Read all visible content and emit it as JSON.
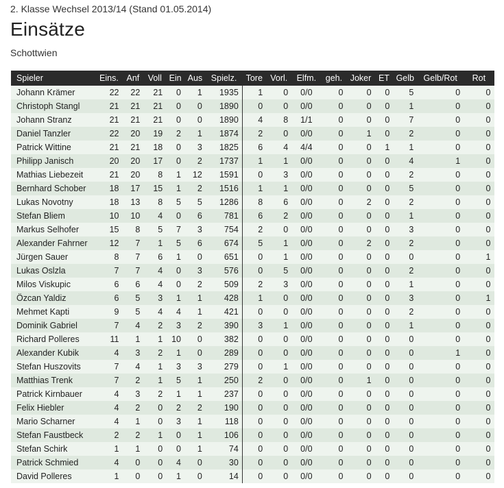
{
  "header": {
    "season": "2. Klasse Wechsel 2013/14 (Stand 01.05.2014)",
    "title": "Einsätze",
    "team": "Schottwien"
  },
  "table": {
    "columns": [
      "Spieler",
      "Eins.",
      "Anf",
      "Voll",
      "Ein",
      "Aus",
      "Spielz.",
      "Tore",
      "Vorl.",
      "Elfm.",
      "geh.",
      "Joker",
      "ET",
      "Gelb",
      "Gelb/Rot",
      "Rot"
    ],
    "rows": [
      [
        "Johann Krämer",
        "22",
        "22",
        "21",
        "0",
        "1",
        "1935",
        "1",
        "0",
        "0/0",
        "0",
        "0",
        "0",
        "5",
        "0",
        "0"
      ],
      [
        "Christoph Stangl",
        "21",
        "21",
        "21",
        "0",
        "0",
        "1890",
        "0",
        "0",
        "0/0",
        "0",
        "0",
        "0",
        "1",
        "0",
        "0"
      ],
      [
        "Johann Stranz",
        "21",
        "21",
        "21",
        "0",
        "0",
        "1890",
        "4",
        "8",
        "1/1",
        "0",
        "0",
        "0",
        "7",
        "0",
        "0"
      ],
      [
        "Daniel Tanzler",
        "22",
        "20",
        "19",
        "2",
        "1",
        "1874",
        "2",
        "0",
        "0/0",
        "0",
        "1",
        "0",
        "2",
        "0",
        "0"
      ],
      [
        "Patrick Wittine",
        "21",
        "21",
        "18",
        "0",
        "3",
        "1825",
        "6",
        "4",
        "4/4",
        "0",
        "0",
        "1",
        "1",
        "0",
        "0"
      ],
      [
        "Philipp Janisch",
        "20",
        "20",
        "17",
        "0",
        "2",
        "1737",
        "1",
        "1",
        "0/0",
        "0",
        "0",
        "0",
        "4",
        "1",
        "0"
      ],
      [
        "Mathias Liebezeit",
        "21",
        "20",
        "8",
        "1",
        "12",
        "1591",
        "0",
        "3",
        "0/0",
        "0",
        "0",
        "0",
        "2",
        "0",
        "0"
      ],
      [
        "Bernhard Schober",
        "18",
        "17",
        "15",
        "1",
        "2",
        "1516",
        "1",
        "1",
        "0/0",
        "0",
        "0",
        "0",
        "5",
        "0",
        "0"
      ],
      [
        "Lukas Novotny",
        "18",
        "13",
        "8",
        "5",
        "5",
        "1286",
        "8",
        "6",
        "0/0",
        "0",
        "2",
        "0",
        "2",
        "0",
        "0"
      ],
      [
        "Stefan Bliem",
        "10",
        "10",
        "4",
        "0",
        "6",
        "781",
        "6",
        "2",
        "0/0",
        "0",
        "0",
        "0",
        "1",
        "0",
        "0"
      ],
      [
        "Markus Selhofer",
        "15",
        "8",
        "5",
        "7",
        "3",
        "754",
        "2",
        "0",
        "0/0",
        "0",
        "0",
        "0",
        "3",
        "0",
        "0"
      ],
      [
        "Alexander Fahrner",
        "12",
        "7",
        "1",
        "5",
        "6",
        "674",
        "5",
        "1",
        "0/0",
        "0",
        "2",
        "0",
        "2",
        "0",
        "0"
      ],
      [
        "Jürgen Sauer",
        "8",
        "7",
        "6",
        "1",
        "0",
        "651",
        "0",
        "1",
        "0/0",
        "0",
        "0",
        "0",
        "0",
        "0",
        "1"
      ],
      [
        "Lukas Oslzla",
        "7",
        "7",
        "4",
        "0",
        "3",
        "576",
        "0",
        "5",
        "0/0",
        "0",
        "0",
        "0",
        "2",
        "0",
        "0"
      ],
      [
        "Milos Viskupic",
        "6",
        "6",
        "4",
        "0",
        "2",
        "509",
        "2",
        "3",
        "0/0",
        "0",
        "0",
        "0",
        "1",
        "0",
        "0"
      ],
      [
        "Özcan Yaldiz",
        "6",
        "5",
        "3",
        "1",
        "1",
        "428",
        "1",
        "0",
        "0/0",
        "0",
        "0",
        "0",
        "3",
        "0",
        "1"
      ],
      [
        "Mehmet Kapti",
        "9",
        "5",
        "4",
        "4",
        "1",
        "421",
        "0",
        "0",
        "0/0",
        "0",
        "0",
        "0",
        "2",
        "0",
        "0"
      ],
      [
        "Dominik Gabriel",
        "7",
        "4",
        "2",
        "3",
        "2",
        "390",
        "3",
        "1",
        "0/0",
        "0",
        "0",
        "0",
        "1",
        "0",
        "0"
      ],
      [
        "Richard Polleres",
        "11",
        "1",
        "1",
        "10",
        "0",
        "382",
        "0",
        "0",
        "0/0",
        "0",
        "0",
        "0",
        "0",
        "0",
        "0"
      ],
      [
        "Alexander Kubik",
        "4",
        "3",
        "2",
        "1",
        "0",
        "289",
        "0",
        "0",
        "0/0",
        "0",
        "0",
        "0",
        "0",
        "1",
        "0"
      ],
      [
        "Stefan Huszovits",
        "7",
        "4",
        "1",
        "3",
        "3",
        "279",
        "0",
        "1",
        "0/0",
        "0",
        "0",
        "0",
        "0",
        "0",
        "0"
      ],
      [
        "Matthias Trenk",
        "7",
        "2",
        "1",
        "5",
        "1",
        "250",
        "2",
        "0",
        "0/0",
        "0",
        "1",
        "0",
        "0",
        "0",
        "0"
      ],
      [
        "Patrick Kirnbauer",
        "4",
        "3",
        "2",
        "1",
        "1",
        "237",
        "0",
        "0",
        "0/0",
        "0",
        "0",
        "0",
        "0",
        "0",
        "0"
      ],
      [
        "Felix Hiebler",
        "4",
        "2",
        "0",
        "2",
        "2",
        "190",
        "0",
        "0",
        "0/0",
        "0",
        "0",
        "0",
        "0",
        "0",
        "0"
      ],
      [
        "Mario Scharner",
        "4",
        "1",
        "0",
        "3",
        "1",
        "118",
        "0",
        "0",
        "0/0",
        "0",
        "0",
        "0",
        "0",
        "0",
        "0"
      ],
      [
        "Stefan Faustbeck",
        "2",
        "2",
        "1",
        "0",
        "1",
        "106",
        "0",
        "0",
        "0/0",
        "0",
        "0",
        "0",
        "0",
        "0",
        "0"
      ],
      [
        "Stefan Schirk",
        "1",
        "1",
        "0",
        "0",
        "1",
        "74",
        "0",
        "0",
        "0/0",
        "0",
        "0",
        "0",
        "0",
        "0",
        "0"
      ],
      [
        "Patrick Schmied",
        "4",
        "0",
        "0",
        "4",
        "0",
        "30",
        "0",
        "0",
        "0/0",
        "0",
        "0",
        "0",
        "0",
        "0",
        "0"
      ],
      [
        "David Polleres",
        "1",
        "0",
        "0",
        "1",
        "0",
        "14",
        "0",
        "0",
        "0/0",
        "0",
        "0",
        "0",
        "0",
        "0",
        "0"
      ]
    ]
  }
}
